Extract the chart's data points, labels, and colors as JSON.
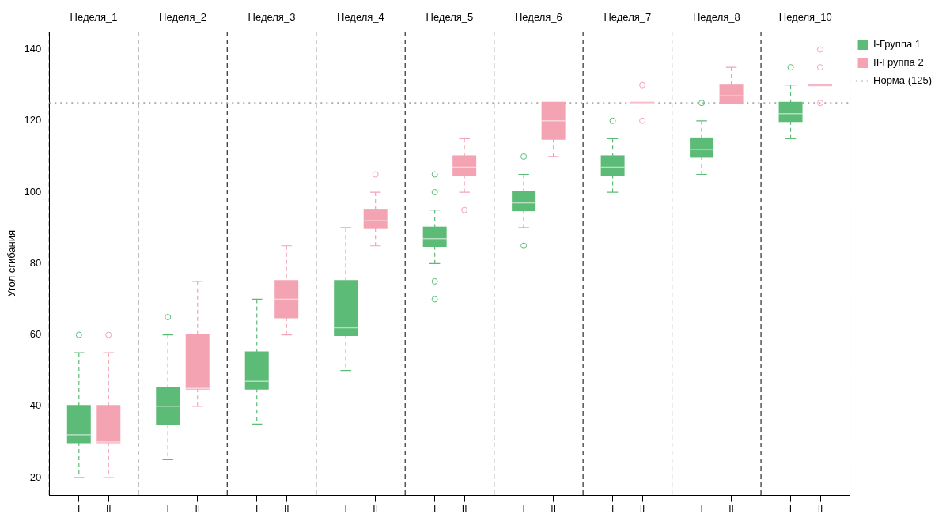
{
  "chart_data": {
    "type": "box",
    "ylabel": "Угол сгибания",
    "categories": [
      "I",
      "II",
      "I",
      "II",
      "I",
      "II",
      "I",
      "II",
      "I",
      "II",
      "I",
      "II",
      "I",
      "II",
      "I",
      "II",
      "I",
      "II"
    ],
    "series": [
      {
        "name": "I-Группа 1",
        "color": "#5dbb78",
        "boxes": [
          {
            "low": 20,
            "q1": 30,
            "median": 32,
            "q3": 40,
            "high": 55,
            "outliers": [
              60
            ]
          },
          null,
          {
            "low": 25,
            "q1": 35,
            "median": 40,
            "q3": 45,
            "high": 60,
            "outliers": [
              65
            ]
          },
          null,
          {
            "low": 35,
            "q1": 45,
            "median": 47,
            "q3": 55,
            "high": 70
          },
          null,
          {
            "low": 50,
            "q1": 60,
            "median": 62,
            "q3": 75,
            "high": 90
          },
          null,
          {
            "low": 80,
            "q1": 85,
            "median": 87,
            "q3": 90,
            "high": 95,
            "outliers": [
              70,
              75,
              100,
              105
            ]
          },
          null,
          {
            "low": 90,
            "q1": 95,
            "median": 97,
            "q3": 100,
            "high": 105,
            "outliers": [
              85,
              110
            ]
          },
          null,
          {
            "low": 100,
            "q1": 105,
            "median": 107,
            "q3": 110,
            "high": 115,
            "outliers": [
              120
            ]
          },
          null,
          {
            "low": 105,
            "q1": 110,
            "median": 112,
            "q3": 115,
            "high": 120,
            "outliers": [
              125
            ]
          },
          null,
          {
            "low": 115,
            "q1": 120,
            "median": 122,
            "q3": 125,
            "high": 130,
            "outliers": [
              135
            ]
          },
          null
        ]
      },
      {
        "name": "II-Группа 2",
        "color": "#f4a3b3",
        "boxes": [
          null,
          {
            "low": 20,
            "q1": 30,
            "median": 30,
            "q3": 40,
            "high": 55,
            "outliers": [
              60
            ]
          },
          null,
          {
            "low": 40,
            "q1": 45,
            "median": 45,
            "q3": 60,
            "high": 75
          },
          null,
          {
            "low": 60,
            "q1": 65,
            "median": 70,
            "q3": 75,
            "high": 85
          },
          null,
          {
            "low": 85,
            "q1": 90,
            "median": 92,
            "q3": 95,
            "high": 100,
            "outliers": [
              105
            ]
          },
          null,
          {
            "low": 100,
            "q1": 105,
            "median": 107,
            "q3": 110,
            "high": 115,
            "outliers": [
              95
            ]
          },
          null,
          {
            "low": 110,
            "q1": 115,
            "median": 120,
            "q3": 125,
            "high": 125
          },
          null,
          {
            "low": 125,
            "q1": 125,
            "median": 125,
            "q3": 125,
            "high": 125,
            "outliers": [
              120,
              130
            ]
          },
          null,
          {
            "low": 125,
            "q1": 125,
            "median": 127,
            "q3": 130,
            "high": 135
          },
          null,
          {
            "low": 130,
            "q1": 130,
            "median": 130,
            "q3": 130,
            "high": 130,
            "outliers": [
              125,
              135,
              140
            ]
          }
        ]
      }
    ],
    "ylim": [
      15,
      145
    ],
    "yticks": [
      20,
      40,
      60,
      80,
      100,
      120,
      140
    ],
    "ref_lines": [
      {
        "axis": "y",
        "value": 125,
        "label": "Норма (125)",
        "color": "#aaaaaa",
        "line_style": "dotted"
      }
    ],
    "annotations": [
      "Неделя_1",
      "Неделя_2",
      "Неделя_3",
      "Неделя_4",
      "Неделя_5",
      "Неделя_6",
      "Неделя_7",
      "Неделя_8",
      "Неделя_10"
    ],
    "legend": "top right",
    "marker": "circle"
  }
}
